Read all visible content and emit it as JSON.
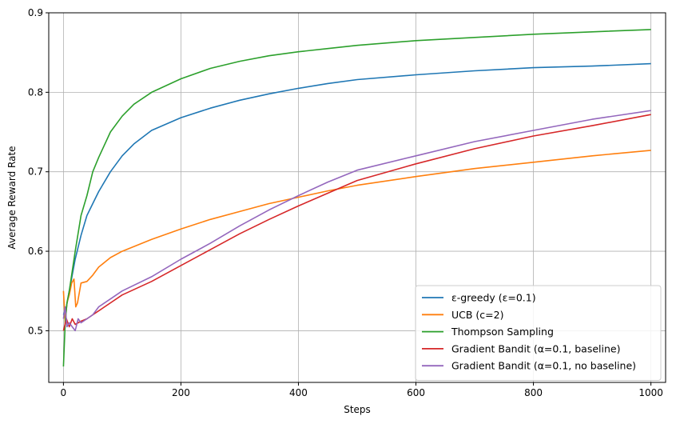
{
  "chart_data": {
    "type": "line",
    "title": "",
    "xlabel": "Steps",
    "ylabel": "Average Reward Rate",
    "xlim": [
      -25,
      1025
    ],
    "ylim": [
      0.435,
      0.9
    ],
    "xticks": [
      0,
      200,
      400,
      600,
      800,
      1000
    ],
    "yticks": [
      0.5,
      0.6,
      0.7,
      0.8,
      0.9
    ],
    "grid": true,
    "legend_position": "lower-right",
    "series": [
      {
        "name": "ε-greedy (ε=0.1)",
        "color": "#1f77b4",
        "points": [
          [
            0,
            0.52
          ],
          [
            5,
            0.53
          ],
          [
            10,
            0.55
          ],
          [
            20,
            0.59
          ],
          [
            30,
            0.62
          ],
          [
            40,
            0.645
          ],
          [
            50,
            0.66
          ],
          [
            60,
            0.675
          ],
          [
            80,
            0.7
          ],
          [
            100,
            0.72
          ],
          [
            120,
            0.735
          ],
          [
            150,
            0.752
          ],
          [
            200,
            0.768
          ],
          [
            250,
            0.78
          ],
          [
            300,
            0.79
          ],
          [
            350,
            0.798
          ],
          [
            400,
            0.805
          ],
          [
            450,
            0.811
          ],
          [
            500,
            0.816
          ],
          [
            600,
            0.822
          ],
          [
            700,
            0.827
          ],
          [
            800,
            0.831
          ],
          [
            900,
            0.833
          ],
          [
            1000,
            0.836
          ]
        ]
      },
      {
        "name": "UCB (c=2)",
        "color": "#ff7f0e",
        "points": [
          [
            0,
            0.55
          ],
          [
            3,
            0.51
          ],
          [
            6,
            0.535
          ],
          [
            10,
            0.545
          ],
          [
            14,
            0.56
          ],
          [
            18,
            0.565
          ],
          [
            21,
            0.53
          ],
          [
            24,
            0.535
          ],
          [
            30,
            0.56
          ],
          [
            40,
            0.562
          ],
          [
            50,
            0.57
          ],
          [
            60,
            0.58
          ],
          [
            80,
            0.592
          ],
          [
            100,
            0.6
          ],
          [
            150,
            0.615
          ],
          [
            200,
            0.628
          ],
          [
            250,
            0.64
          ],
          [
            300,
            0.65
          ],
          [
            350,
            0.66
          ],
          [
            400,
            0.668
          ],
          [
            450,
            0.676
          ],
          [
            500,
            0.683
          ],
          [
            600,
            0.694
          ],
          [
            700,
            0.704
          ],
          [
            800,
            0.712
          ],
          [
            900,
            0.72
          ],
          [
            1000,
            0.727
          ]
        ]
      },
      {
        "name": "Thompson Sampling",
        "color": "#2ca02c",
        "points": [
          [
            0,
            0.455
          ],
          [
            3,
            0.51
          ],
          [
            6,
            0.535
          ],
          [
            10,
            0.55
          ],
          [
            20,
            0.6
          ],
          [
            30,
            0.645
          ],
          [
            40,
            0.67
          ],
          [
            50,
            0.7
          ],
          [
            60,
            0.718
          ],
          [
            80,
            0.75
          ],
          [
            100,
            0.77
          ],
          [
            120,
            0.785
          ],
          [
            150,
            0.8
          ],
          [
            200,
            0.817
          ],
          [
            250,
            0.83
          ],
          [
            300,
            0.839
          ],
          [
            350,
            0.846
          ],
          [
            400,
            0.851
          ],
          [
            450,
            0.855
          ],
          [
            500,
            0.859
          ],
          [
            600,
            0.865
          ],
          [
            700,
            0.869
          ],
          [
            800,
            0.873
          ],
          [
            900,
            0.876
          ],
          [
            1000,
            0.879
          ]
        ]
      },
      {
        "name": "Gradient Bandit (α=0.1, baseline)",
        "color": "#d62728",
        "points": [
          [
            0,
            0.5
          ],
          [
            5,
            0.515
          ],
          [
            10,
            0.505
          ],
          [
            15,
            0.515
          ],
          [
            20,
            0.508
          ],
          [
            30,
            0.512
          ],
          [
            40,
            0.515
          ],
          [
            50,
            0.52
          ],
          [
            60,
            0.525
          ],
          [
            80,
            0.535
          ],
          [
            100,
            0.545
          ],
          [
            150,
            0.562
          ],
          [
            200,
            0.582
          ],
          [
            250,
            0.602
          ],
          [
            300,
            0.622
          ],
          [
            350,
            0.64
          ],
          [
            400,
            0.657
          ],
          [
            450,
            0.673
          ],
          [
            500,
            0.689
          ],
          [
            600,
            0.71
          ],
          [
            700,
            0.729
          ],
          [
            800,
            0.745
          ],
          [
            900,
            0.758
          ],
          [
            1000,
            0.772
          ]
        ]
      },
      {
        "name": "Gradient Bandit (α=0.1, no baseline)",
        "color": "#9467bd",
        "points": [
          [
            0,
            0.515
          ],
          [
            3,
            0.53
          ],
          [
            6,
            0.505
          ],
          [
            10,
            0.51
          ],
          [
            15,
            0.505
          ],
          [
            20,
            0.5
          ],
          [
            25,
            0.515
          ],
          [
            30,
            0.51
          ],
          [
            40,
            0.515
          ],
          [
            50,
            0.52
          ],
          [
            60,
            0.53
          ],
          [
            80,
            0.54
          ],
          [
            100,
            0.55
          ],
          [
            150,
            0.568
          ],
          [
            200,
            0.59
          ],
          [
            250,
            0.61
          ],
          [
            300,
            0.632
          ],
          [
            350,
            0.652
          ],
          [
            400,
            0.67
          ],
          [
            450,
            0.687
          ],
          [
            500,
            0.702
          ],
          [
            600,
            0.72
          ],
          [
            700,
            0.738
          ],
          [
            800,
            0.752
          ],
          [
            900,
            0.766
          ],
          [
            1000,
            0.777
          ]
        ]
      }
    ]
  }
}
